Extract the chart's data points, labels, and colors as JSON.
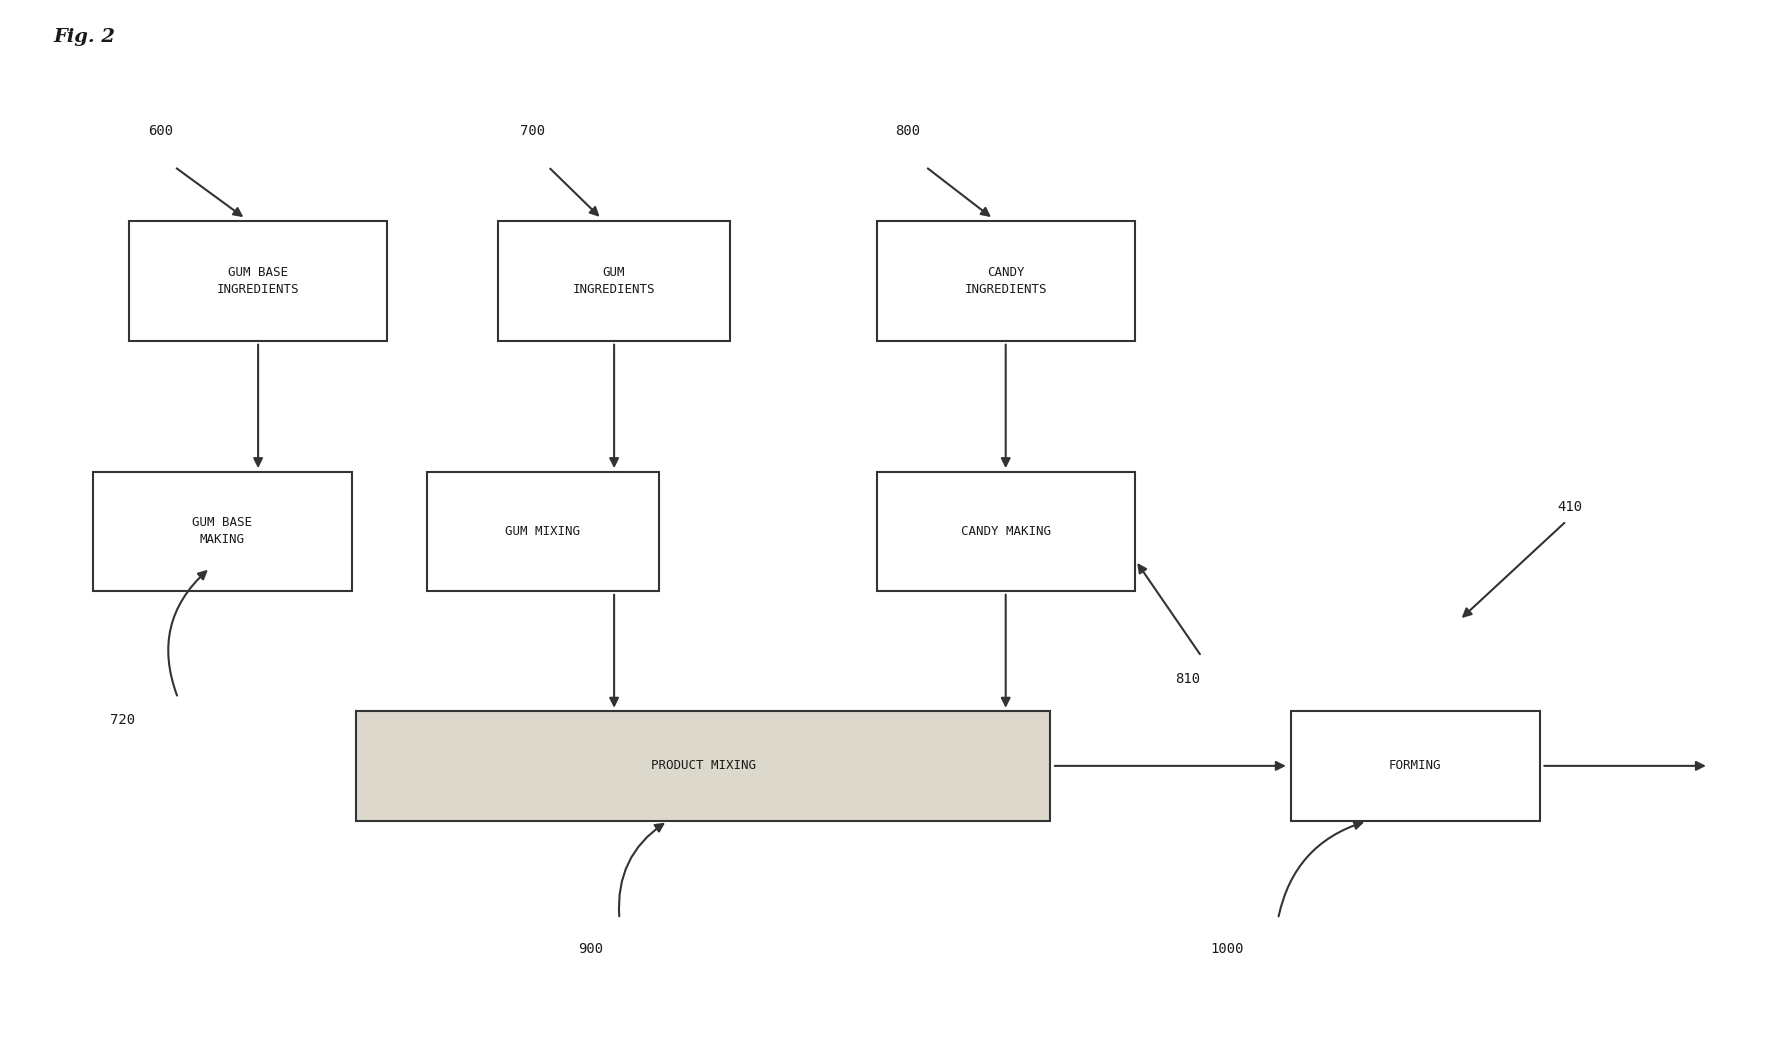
{
  "fig_label": "Fig. 2",
  "background_color": "#ffffff",
  "text_color": "#1a1a1a",
  "box_edge_color": "#333333",
  "arrow_color": "#333333",
  "font_size": 9,
  "label_font_size": 10,
  "fig_label_font_size": 14,
  "box_coords": {
    "gum_base_ingr": [
      0.145,
      0.73,
      0.145,
      0.115
    ],
    "gum_ingr": [
      0.345,
      0.73,
      0.13,
      0.115
    ],
    "candy_ingr": [
      0.565,
      0.73,
      0.145,
      0.115
    ],
    "gum_base_mak": [
      0.125,
      0.49,
      0.145,
      0.115
    ],
    "gum_mixing": [
      0.305,
      0.49,
      0.13,
      0.115
    ],
    "candy_making": [
      0.565,
      0.49,
      0.145,
      0.115
    ],
    "product_mix": [
      0.395,
      0.265,
      0.39,
      0.105
    ],
    "forming": [
      0.795,
      0.265,
      0.14,
      0.105
    ]
  },
  "box_labels": {
    "gum_base_ingr": "GUM BASE\nINGREDIENTS",
    "gum_ingr": "GUM\nINGREDIENTS",
    "candy_ingr": "CANDY\nINGREDIENTS",
    "gum_base_mak": "GUM BASE\nMAKING",
    "gum_mixing": "GUM MIXING",
    "candy_making": "CANDY MAKING",
    "product_mix": "PRODUCT MIXING",
    "forming": "FORMING"
  },
  "shaded_boxes": [
    "product_mix"
  ],
  "shaded_color": "#ddd8cc"
}
